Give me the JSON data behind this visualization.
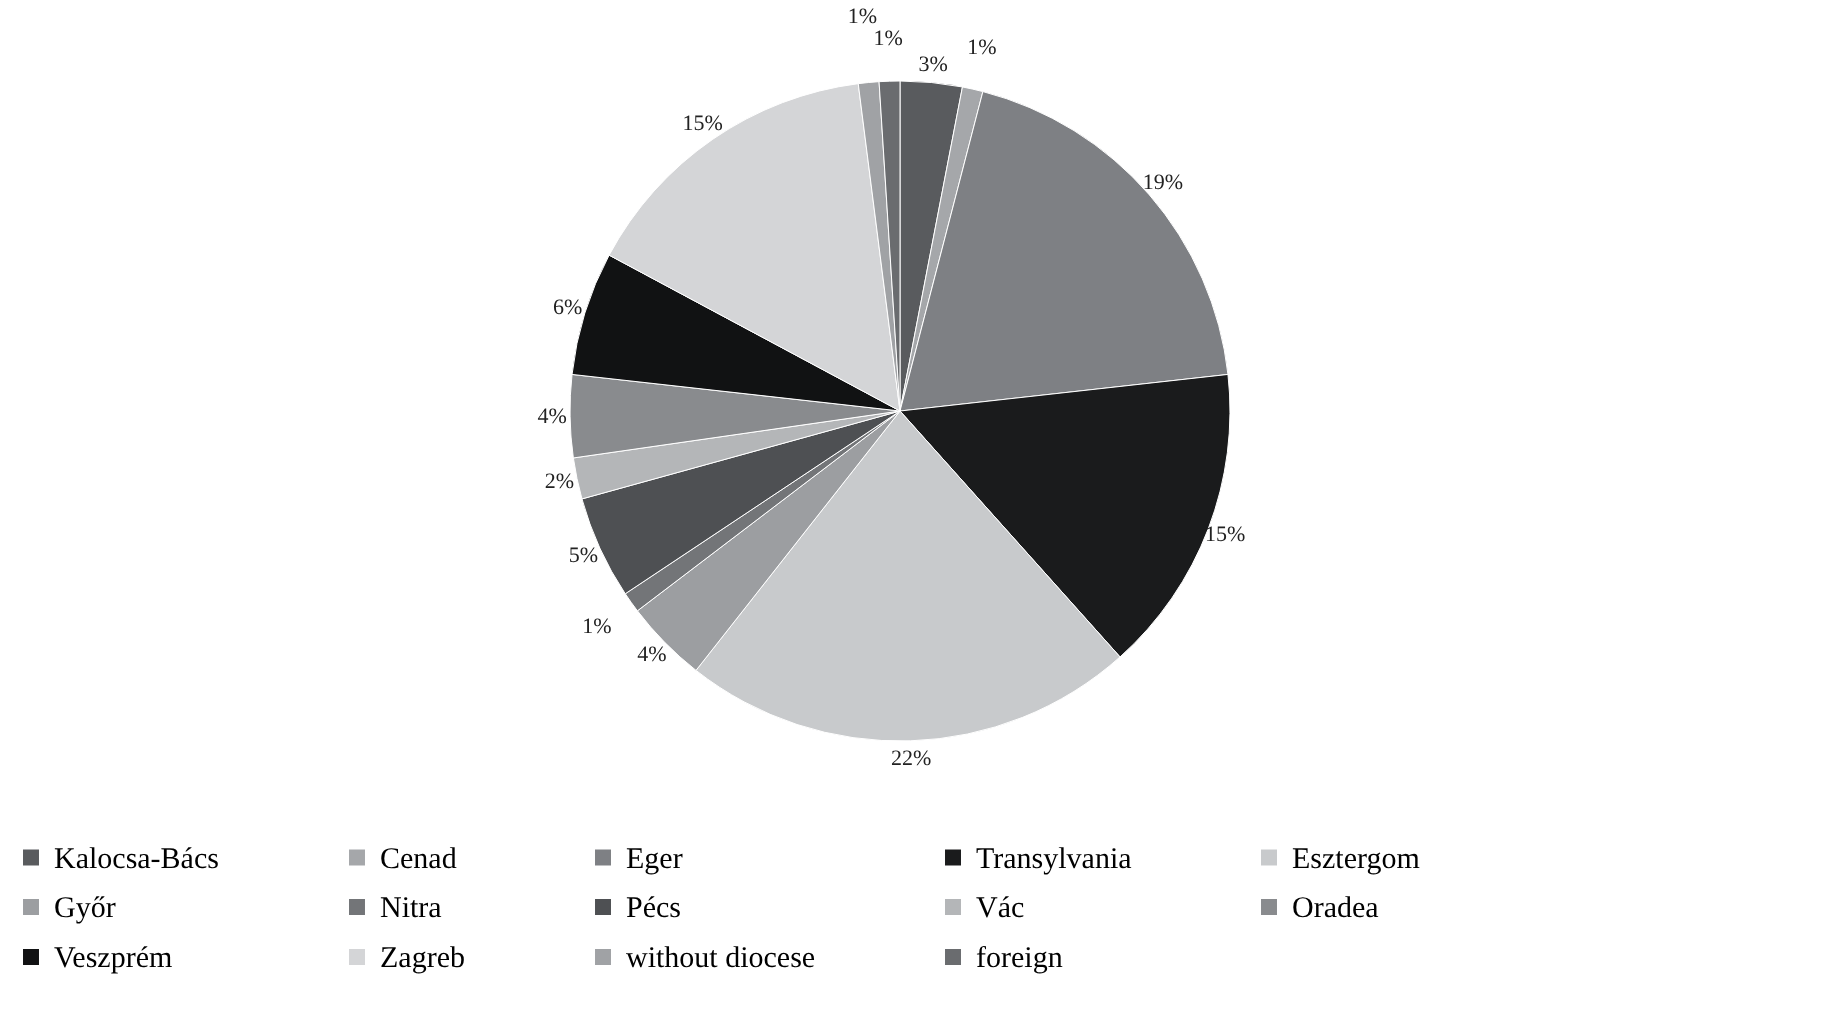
{
  "chart_data": {
    "type": "pie",
    "categories": [
      "Kalocsa-Bács",
      "Cenad",
      "Eger",
      "Transylvania",
      "Esztergom",
      "Győr",
      "Nitra",
      "Pécs",
      "Vác",
      "Oradea",
      "Veszprém",
      "Zagreb",
      "without diocese",
      "foreign"
    ],
    "values": [
      3,
      1,
      19,
      15,
      22,
      4,
      1,
      5,
      2,
      4,
      6,
      15,
      1,
      1
    ],
    "value_labels": [
      "3%",
      "1%",
      "19%",
      "15%",
      "22%",
      "4%",
      "1%",
      "5%",
      "2%",
      "4%",
      "6%",
      "15%",
      "1%",
      "1%"
    ],
    "colors": [
      "#595b5e",
      "#a5a7aa",
      "#7e8084",
      "#1a1b1c",
      "#c8cacc",
      "#9c9ea1",
      "#737578",
      "#4e5053",
      "#b4b6b8",
      "#898b8e",
      "#111213",
      "#d4d5d7",
      "#a0a2a5",
      "#6a6c6f"
    ],
    "legend": "bottom"
  }
}
